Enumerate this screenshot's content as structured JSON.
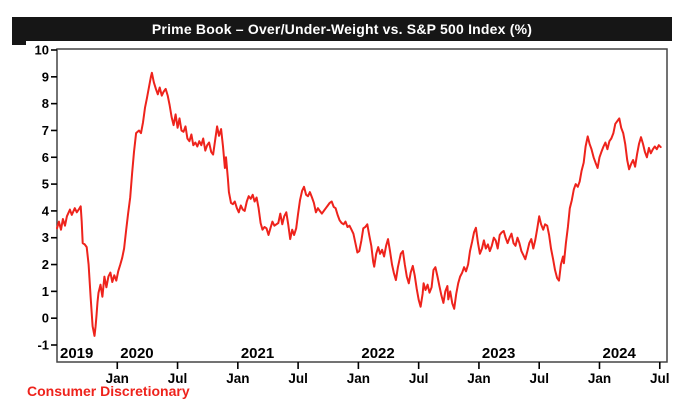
{
  "title_bar": {
    "text": "Prime Book – Over/Under-Weight vs. S&P 500 Index (%)",
    "bg": "#161616",
    "fg": "#ffffff"
  },
  "footer_label": "Consumer Discretionary",
  "colors": {
    "line": "#ee231c",
    "footer_text": "#ee231c",
    "frame": "#444444",
    "tick": "#000000",
    "label": "#000000"
  },
  "chart_data": {
    "type": "line",
    "title": "Prime Book – Over/Under-Weight vs. S&P 500 Index (%)",
    "series_name": "Consumer Discretionary",
    "xlabel": "",
    "ylabel": "",
    "xlim": [
      2019.5,
      2024.56
    ],
    "ylim": [
      -1,
      10
    ],
    "grid": false,
    "legend_position": "below-left",
    "y_ticks": [
      10,
      9,
      8,
      7,
      6,
      5,
      4,
      3,
      2,
      1,
      0,
      -1
    ],
    "x_ticks": [
      {
        "t": 2020.0,
        "label": "Jan"
      },
      {
        "t": 2020.5,
        "label": "Jul"
      },
      {
        "t": 2021.0,
        "label": "Jan"
      },
      {
        "t": 2021.5,
        "label": "Jul"
      },
      {
        "t": 2022.0,
        "label": "Jan"
      },
      {
        "t": 2022.5,
        "label": "Jul"
      },
      {
        "t": 2023.0,
        "label": "Jan"
      },
      {
        "t": 2023.5,
        "label": "Jul"
      },
      {
        "t": 2024.0,
        "label": "Jan"
      },
      {
        "t": 2024.5,
        "label": "Jul"
      }
    ],
    "year_labels": [
      {
        "t": 2019.5,
        "label": "2019"
      },
      {
        "t": 2020.0,
        "label": "2020"
      },
      {
        "t": 2021.0,
        "label": "2021"
      },
      {
        "t": 2022.0,
        "label": "2022"
      },
      {
        "t": 2023.0,
        "label": "2023"
      },
      {
        "t": 2024.0,
        "label": "2024"
      }
    ],
    "points": [
      [
        2019.5,
        3.35
      ],
      [
        2019.516,
        3.6
      ],
      [
        2019.533,
        3.3
      ],
      [
        2019.549,
        3.7
      ],
      [
        2019.566,
        3.45
      ],
      [
        2019.582,
        3.8
      ],
      [
        2019.607,
        4.05
      ],
      [
        2019.623,
        3.85
      ],
      [
        2019.648,
        4.1
      ],
      [
        2019.664,
        3.95
      ],
      [
        2019.68,
        4.05
      ],
      [
        2019.697,
        4.17
      ],
      [
        2019.705,
        3.6
      ],
      [
        2019.713,
        2.8
      ],
      [
        2019.73,
        2.75
      ],
      [
        2019.746,
        2.65
      ],
      [
        2019.762,
        2.0
      ],
      [
        2019.779,
        0.8
      ],
      [
        2019.795,
        -0.3
      ],
      [
        2019.811,
        -0.66
      ],
      [
        2019.82,
        -0.3
      ],
      [
        2019.828,
        0.1
      ],
      [
        2019.836,
        0.6
      ],
      [
        2019.844,
        0.95
      ],
      [
        2019.861,
        1.25
      ],
      [
        2019.877,
        0.8
      ],
      [
        2019.893,
        1.55
      ],
      [
        2019.91,
        1.15
      ],
      [
        2019.926,
        1.55
      ],
      [
        2019.943,
        1.7
      ],
      [
        2019.959,
        1.35
      ],
      [
        2019.975,
        1.6
      ],
      [
        2019.992,
        1.4
      ],
      [
        2020.008,
        1.75
      ],
      [
        2020.025,
        2.0
      ],
      [
        2020.041,
        2.25
      ],
      [
        2020.057,
        2.6
      ],
      [
        2020.074,
        3.3
      ],
      [
        2020.09,
        3.9
      ],
      [
        2020.107,
        4.5
      ],
      [
        2020.123,
        5.4
      ],
      [
        2020.139,
        6.2
      ],
      [
        2020.156,
        6.9
      ],
      [
        2020.18,
        7.0
      ],
      [
        2020.197,
        6.9
      ],
      [
        2020.213,
        7.3
      ],
      [
        2020.23,
        7.85
      ],
      [
        2020.246,
        8.2
      ],
      [
        2020.262,
        8.6
      ],
      [
        2020.279,
        9.0
      ],
      [
        2020.287,
        9.15
      ],
      [
        2020.303,
        8.8
      ],
      [
        2020.32,
        8.55
      ],
      [
        2020.336,
        8.35
      ],
      [
        2020.352,
        8.6
      ],
      [
        2020.369,
        8.3
      ],
      [
        2020.385,
        8.45
      ],
      [
        2020.402,
        8.55
      ],
      [
        2020.418,
        8.3
      ],
      [
        2020.434,
        7.95
      ],
      [
        2020.451,
        7.5
      ],
      [
        2020.467,
        7.2
      ],
      [
        2020.484,
        7.6
      ],
      [
        2020.5,
        7.1
      ],
      [
        2020.516,
        7.45
      ],
      [
        2020.533,
        7.0
      ],
      [
        2020.549,
        6.95
      ],
      [
        2020.566,
        7.15
      ],
      [
        2020.582,
        6.7
      ],
      [
        2020.598,
        6.6
      ],
      [
        2020.615,
        6.85
      ],
      [
        2020.631,
        6.45
      ],
      [
        2020.648,
        6.55
      ],
      [
        2020.664,
        6.4
      ],
      [
        2020.68,
        6.6
      ],
      [
        2020.697,
        6.45
      ],
      [
        2020.713,
        6.7
      ],
      [
        2020.73,
        6.25
      ],
      [
        2020.746,
        6.45
      ],
      [
        2020.762,
        6.55
      ],
      [
        2020.779,
        6.2
      ],
      [
        2020.795,
        6.1
      ],
      [
        2020.811,
        6.6
      ],
      [
        2020.828,
        7.15
      ],
      [
        2020.844,
        6.8
      ],
      [
        2020.861,
        7.05
      ],
      [
        2020.877,
        6.4
      ],
      [
        2020.893,
        5.6
      ],
      [
        2020.902,
        6.0
      ],
      [
        2020.918,
        5.2
      ],
      [
        2020.926,
        4.7
      ],
      [
        2020.943,
        4.3
      ],
      [
        2020.959,
        4.25
      ],
      [
        2020.975,
        4.35
      ],
      [
        2020.992,
        4.1
      ],
      [
        2021.008,
        3.95
      ],
      [
        2021.025,
        4.2
      ],
      [
        2021.041,
        4.05
      ],
      [
        2021.057,
        4.0
      ],
      [
        2021.074,
        4.35
      ],
      [
        2021.09,
        4.55
      ],
      [
        2021.107,
        4.45
      ],
      [
        2021.123,
        4.6
      ],
      [
        2021.139,
        4.35
      ],
      [
        2021.156,
        4.5
      ],
      [
        2021.172,
        4.1
      ],
      [
        2021.189,
        3.55
      ],
      [
        2021.205,
        3.3
      ],
      [
        2021.221,
        3.4
      ],
      [
        2021.238,
        3.35
      ],
      [
        2021.254,
        3.1
      ],
      [
        2021.27,
        3.35
      ],
      [
        2021.287,
        3.6
      ],
      [
        2021.303,
        3.45
      ],
      [
        2021.32,
        3.5
      ],
      [
        2021.336,
        3.55
      ],
      [
        2021.352,
        3.9
      ],
      [
        2021.369,
        3.5
      ],
      [
        2021.385,
        3.8
      ],
      [
        2021.402,
        3.95
      ],
      [
        2021.418,
        3.5
      ],
      [
        2021.434,
        2.95
      ],
      [
        2021.451,
        3.3
      ],
      [
        2021.467,
        3.1
      ],
      [
        2021.484,
        3.35
      ],
      [
        2021.5,
        3.9
      ],
      [
        2021.516,
        4.4
      ],
      [
        2021.533,
        4.75
      ],
      [
        2021.549,
        4.9
      ],
      [
        2021.566,
        4.6
      ],
      [
        2021.582,
        4.55
      ],
      [
        2021.598,
        4.7
      ],
      [
        2021.615,
        4.5
      ],
      [
        2021.631,
        4.3
      ],
      [
        2021.648,
        3.95
      ],
      [
        2021.664,
        4.1
      ],
      [
        2021.68,
        4.0
      ],
      [
        2021.697,
        3.9
      ],
      [
        2021.713,
        4.0
      ],
      [
        2021.73,
        4.1
      ],
      [
        2021.746,
        4.2
      ],
      [
        2021.762,
        4.3
      ],
      [
        2021.779,
        4.35
      ],
      [
        2021.795,
        4.15
      ],
      [
        2021.811,
        4.1
      ],
      [
        2021.828,
        3.85
      ],
      [
        2021.844,
        3.65
      ],
      [
        2021.861,
        3.55
      ],
      [
        2021.877,
        3.5
      ],
      [
        2021.893,
        3.6
      ],
      [
        2021.91,
        3.4
      ],
      [
        2021.926,
        3.45
      ],
      [
        2021.943,
        3.3
      ],
      [
        2021.959,
        3.15
      ],
      [
        2021.975,
        2.8
      ],
      [
        2021.992,
        2.45
      ],
      [
        2022.008,
        2.5
      ],
      [
        2022.025,
        2.9
      ],
      [
        2022.041,
        3.35
      ],
      [
        2022.057,
        3.4
      ],
      [
        2022.074,
        3.5
      ],
      [
        2022.09,
        3.1
      ],
      [
        2022.107,
        2.7
      ],
      [
        2022.123,
        2.1
      ],
      [
        2022.131,
        1.92
      ],
      [
        2022.148,
        2.4
      ],
      [
        2022.164,
        2.65
      ],
      [
        2022.18,
        2.4
      ],
      [
        2022.197,
        2.55
      ],
      [
        2022.213,
        2.3
      ],
      [
        2022.23,
        2.7
      ],
      [
        2022.246,
        2.95
      ],
      [
        2022.262,
        2.5
      ],
      [
        2022.279,
        2.0
      ],
      [
        2022.295,
        1.68
      ],
      [
        2022.311,
        1.42
      ],
      [
        2022.328,
        1.9
      ],
      [
        2022.352,
        2.4
      ],
      [
        2022.369,
        2.5
      ],
      [
        2022.385,
        2.0
      ],
      [
        2022.402,
        1.55
      ],
      [
        2022.418,
        1.3
      ],
      [
        2022.434,
        1.7
      ],
      [
        2022.451,
        1.95
      ],
      [
        2022.467,
        1.6
      ],
      [
        2022.484,
        1.1
      ],
      [
        2022.5,
        0.68
      ],
      [
        2022.516,
        0.43
      ],
      [
        2022.533,
        0.9
      ],
      [
        2022.541,
        1.3
      ],
      [
        2022.557,
        1.05
      ],
      [
        2022.574,
        1.25
      ],
      [
        2022.59,
        0.95
      ],
      [
        2022.607,
        1.15
      ],
      [
        2022.623,
        1.8
      ],
      [
        2022.639,
        1.9
      ],
      [
        2022.656,
        1.55
      ],
      [
        2022.672,
        1.2
      ],
      [
        2022.689,
        0.85
      ],
      [
        2022.705,
        0.57
      ],
      [
        2022.721,
        1.0
      ],
      [
        2022.738,
        1.2
      ],
      [
        2022.746,
        0.7
      ],
      [
        2022.762,
        1.0
      ],
      [
        2022.779,
        0.55
      ],
      [
        2022.795,
        0.35
      ],
      [
        2022.811,
        0.9
      ],
      [
        2022.828,
        1.3
      ],
      [
        2022.844,
        1.55
      ],
      [
        2022.861,
        1.7
      ],
      [
        2022.877,
        1.9
      ],
      [
        2022.893,
        1.75
      ],
      [
        2022.91,
        2.0
      ],
      [
        2022.926,
        2.5
      ],
      [
        2022.943,
        2.85
      ],
      [
        2022.959,
        3.2
      ],
      [
        2022.975,
        3.37
      ],
      [
        2022.992,
        2.8
      ],
      [
        2023.008,
        2.4
      ],
      [
        2023.025,
        2.6
      ],
      [
        2023.041,
        2.9
      ],
      [
        2023.057,
        2.6
      ],
      [
        2023.074,
        2.75
      ],
      [
        2023.09,
        2.5
      ],
      [
        2023.107,
        2.7
      ],
      [
        2023.123,
        3.0
      ],
      [
        2023.139,
        2.9
      ],
      [
        2023.156,
        2.6
      ],
      [
        2023.172,
        3.1
      ],
      [
        2023.189,
        3.2
      ],
      [
        2023.205,
        3.25
      ],
      [
        2023.221,
        3.0
      ],
      [
        2023.238,
        2.8
      ],
      [
        2023.254,
        3.0
      ],
      [
        2023.27,
        3.15
      ],
      [
        2023.287,
        2.8
      ],
      [
        2023.303,
        2.7
      ],
      [
        2023.32,
        3.0
      ],
      [
        2023.336,
        2.8
      ],
      [
        2023.352,
        2.5
      ],
      [
        2023.369,
        2.35
      ],
      [
        2023.385,
        2.2
      ],
      [
        2023.402,
        2.5
      ],
      [
        2023.418,
        2.8
      ],
      [
        2023.434,
        2.95
      ],
      [
        2023.451,
        2.6
      ],
      [
        2023.467,
        2.9
      ],
      [
        2023.484,
        3.35
      ],
      [
        2023.5,
        3.8
      ],
      [
        2023.516,
        3.5
      ],
      [
        2023.533,
        3.3
      ],
      [
        2023.549,
        3.5
      ],
      [
        2023.566,
        3.45
      ],
      [
        2023.582,
        3.1
      ],
      [
        2023.598,
        2.6
      ],
      [
        2023.615,
        2.2
      ],
      [
        2023.631,
        1.8
      ],
      [
        2023.648,
        1.5
      ],
      [
        2023.664,
        1.4
      ],
      [
        2023.68,
        2.0
      ],
      [
        2023.697,
        2.3
      ],
      [
        2023.705,
        2.05
      ],
      [
        2023.721,
        2.8
      ],
      [
        2023.738,
        3.4
      ],
      [
        2023.754,
        4.1
      ],
      [
        2023.77,
        4.4
      ],
      [
        2023.787,
        4.8
      ],
      [
        2023.803,
        5.0
      ],
      [
        2023.82,
        4.9
      ],
      [
        2023.836,
        5.1
      ],
      [
        2023.852,
        5.5
      ],
      [
        2023.869,
        5.8
      ],
      [
        2023.885,
        6.4
      ],
      [
        2023.902,
        6.78
      ],
      [
        2023.918,
        6.5
      ],
      [
        2023.934,
        6.3
      ],
      [
        2023.951,
        6.0
      ],
      [
        2023.967,
        5.8
      ],
      [
        2023.984,
        5.6
      ],
      [
        2024.0,
        6.0
      ],
      [
        2024.016,
        6.2
      ],
      [
        2024.033,
        6.4
      ],
      [
        2024.049,
        6.55
      ],
      [
        2024.066,
        6.3
      ],
      [
        2024.082,
        6.6
      ],
      [
        2024.098,
        6.7
      ],
      [
        2024.115,
        6.9
      ],
      [
        2024.131,
        7.25
      ],
      [
        2024.148,
        7.35
      ],
      [
        2024.164,
        7.45
      ],
      [
        2024.18,
        7.1
      ],
      [
        2024.197,
        6.9
      ],
      [
        2024.213,
        6.5
      ],
      [
        2024.23,
        5.9
      ],
      [
        2024.246,
        5.55
      ],
      [
        2024.262,
        5.75
      ],
      [
        2024.279,
        5.9
      ],
      [
        2024.295,
        5.65
      ],
      [
        2024.311,
        6.1
      ],
      [
        2024.328,
        6.5
      ],
      [
        2024.344,
        6.75
      ],
      [
        2024.361,
        6.5
      ],
      [
        2024.377,
        6.2
      ],
      [
        2024.393,
        6.0
      ],
      [
        2024.41,
        6.35
      ],
      [
        2024.426,
        6.15
      ],
      [
        2024.443,
        6.3
      ],
      [
        2024.459,
        6.4
      ],
      [
        2024.475,
        6.3
      ],
      [
        2024.492,
        6.45
      ],
      [
        2024.508,
        6.38
      ]
    ]
  }
}
